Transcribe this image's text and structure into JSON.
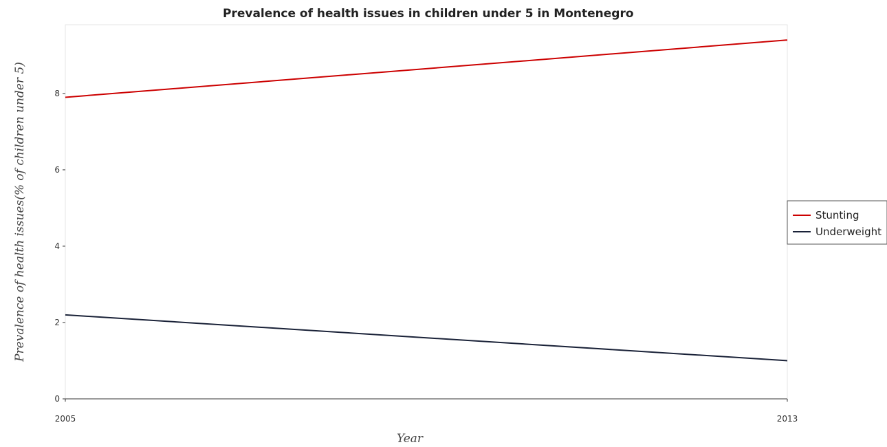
{
  "chart_data": {
    "type": "line",
    "title": "Prevalence of health issues in children under 5 in Montenegro",
    "xlabel": "Year",
    "ylabel": "Prevalence of health issues(% of children under 5)",
    "categories": [
      "2005",
      "2013"
    ],
    "yticks": [
      "0",
      "2",
      "4",
      "6",
      "8"
    ],
    "ylim": [
      0,
      9.8
    ],
    "grid": false,
    "legend_position": "right",
    "series": [
      {
        "name": "Stunting",
        "values": [
          7.9,
          9.4
        ],
        "color": "#cc0000"
      },
      {
        "name": "Underweight",
        "values": [
          2.2,
          1.0
        ],
        "color": "#1a2238"
      }
    ]
  }
}
